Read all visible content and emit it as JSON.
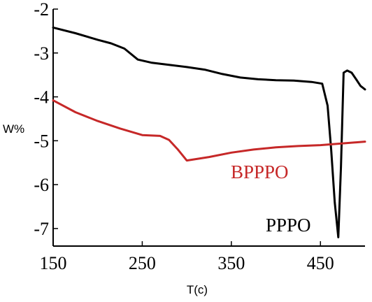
{
  "chart_data": {
    "type": "line",
    "title": "",
    "xlabel": "T(c)",
    "ylabel": "W%",
    "xlim": [
      150,
      500
    ],
    "ylim": [
      -7.4,
      -2
    ],
    "x_ticks": [
      150,
      250,
      350,
      450
    ],
    "y_ticks": [
      -2,
      -3,
      -4,
      -5,
      -6,
      -7
    ],
    "grid": false,
    "legend": "none",
    "series": [
      {
        "name": "PPPO",
        "color": "#000000",
        "x": [
          150,
          175,
          200,
          215,
          230,
          245,
          260,
          280,
          300,
          320,
          340,
          360,
          380,
          400,
          420,
          440,
          452,
          458,
          462,
          466,
          470,
          473,
          476,
          480,
          485,
          490,
          495,
          500
        ],
        "y": [
          -2.42,
          -2.55,
          -2.7,
          -2.78,
          -2.9,
          -3.15,
          -3.22,
          -3.27,
          -3.32,
          -3.38,
          -3.48,
          -3.56,
          -3.6,
          -3.62,
          -3.63,
          -3.66,
          -3.7,
          -4.2,
          -5.2,
          -6.4,
          -7.2,
          -5.6,
          -3.45,
          -3.4,
          -3.45,
          -3.6,
          -3.75,
          -3.83
        ]
      },
      {
        "name": "BPPPO",
        "color": "#c62828",
        "x": [
          150,
          175,
          200,
          225,
          250,
          270,
          280,
          290,
          300,
          325,
          350,
          375,
          400,
          425,
          450,
          475,
          500
        ],
        "y": [
          -4.08,
          -4.35,
          -4.55,
          -4.72,
          -4.87,
          -4.89,
          -4.98,
          -5.2,
          -5.45,
          -5.37,
          -5.27,
          -5.2,
          -5.15,
          -5.12,
          -5.1,
          -5.06,
          -5.02
        ]
      }
    ],
    "annotations": [
      {
        "text": "BPPPO",
        "series": "BPPPO"
      },
      {
        "text": "PPPO",
        "series": "PPPO"
      }
    ]
  }
}
